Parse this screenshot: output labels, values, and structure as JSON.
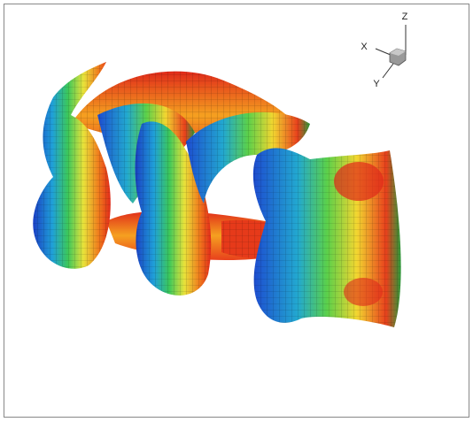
{
  "axes": {
    "z_label": "Z",
    "x_label": "X",
    "y_label": "Y"
  }
}
